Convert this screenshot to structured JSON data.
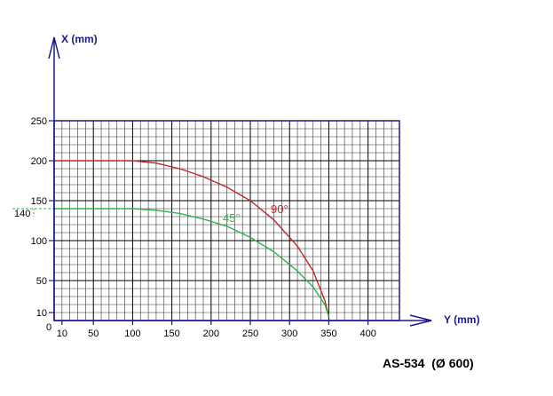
{
  "model_label": "AS-534  (Ø 600)",
  "chart_data": {
    "type": "line",
    "xlabel": "Y (mm)",
    "ylabel": "X (mm)",
    "xlim": [
      0,
      440
    ],
    "ylim": [
      0,
      250
    ],
    "grid": true,
    "x_ticks": [
      "10",
      "50",
      "100",
      "150",
      "200",
      "250",
      "300",
      "350",
      "400"
    ],
    "x_tick_values": [
      10,
      50,
      100,
      150,
      200,
      250,
      300,
      350,
      400
    ],
    "y_ticks": [
      "10",
      "50",
      "100",
      "150",
      "200",
      "250"
    ],
    "y_tick_values": [
      10,
      50,
      100,
      150,
      200,
      250
    ],
    "origin_label": "0",
    "series": [
      {
        "name": "90°",
        "color": "#c0262b",
        "x": [
          0,
          50,
          100,
          130,
          160,
          190,
          220,
          250,
          280,
          310,
          330,
          345,
          350
        ],
        "y": [
          200,
          200,
          200,
          197,
          190,
          180,
          167,
          150,
          126,
          93,
          62,
          25,
          5
        ]
      },
      {
        "name": "45°",
        "color": "#2db34a",
        "x": [
          0,
          50,
          100,
          130,
          160,
          190,
          220,
          250,
          280,
          310,
          330,
          345,
          350
        ],
        "y": [
          140,
          140,
          140,
          138,
          134,
          127,
          118,
          104,
          86,
          62,
          42,
          20,
          5
        ]
      }
    ],
    "annotations": [
      {
        "text": "140",
        "axis": "y",
        "value": 140,
        "color": "#2db34a"
      }
    ]
  }
}
